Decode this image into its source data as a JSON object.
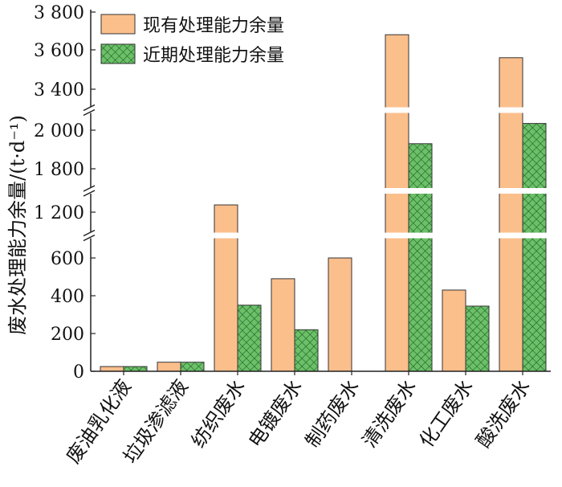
{
  "chart_data": {
    "type": "bar",
    "categories": [
      "废油乳化液",
      "垃圾渗滤液",
      "纺织废水",
      "电镀废水",
      "制药废水",
      "清洗废水",
      "化工废水",
      "酸洗废水"
    ],
    "series": [
      {
        "name": "现有处理能力余量",
        "values": [
          25,
          48,
          1300,
          490,
          600,
          3680,
          430,
          3560
        ],
        "color": "#fbbf8c"
      },
      {
        "name": "近期处理能力余量",
        "values": [
          25,
          48,
          350,
          220,
          0,
          1930,
          345,
          2230
        ],
        "color": "#6cc068"
      }
    ],
    "ylabel": "废水处理能力余量/(t·d⁻¹)",
    "y_tick_labels": [
      "0",
      "200",
      "400",
      "600",
      "1 200",
      "1 800",
      "2 000",
      "3 400",
      "3 600",
      "3 800"
    ],
    "axis_breaks": [
      [
        600,
        1200
      ],
      [
        1200,
        1800
      ],
      [
        2000,
        3400
      ]
    ],
    "ylim": [
      0,
      3800
    ],
    "legend_position": "top-left",
    "grid": false
  }
}
